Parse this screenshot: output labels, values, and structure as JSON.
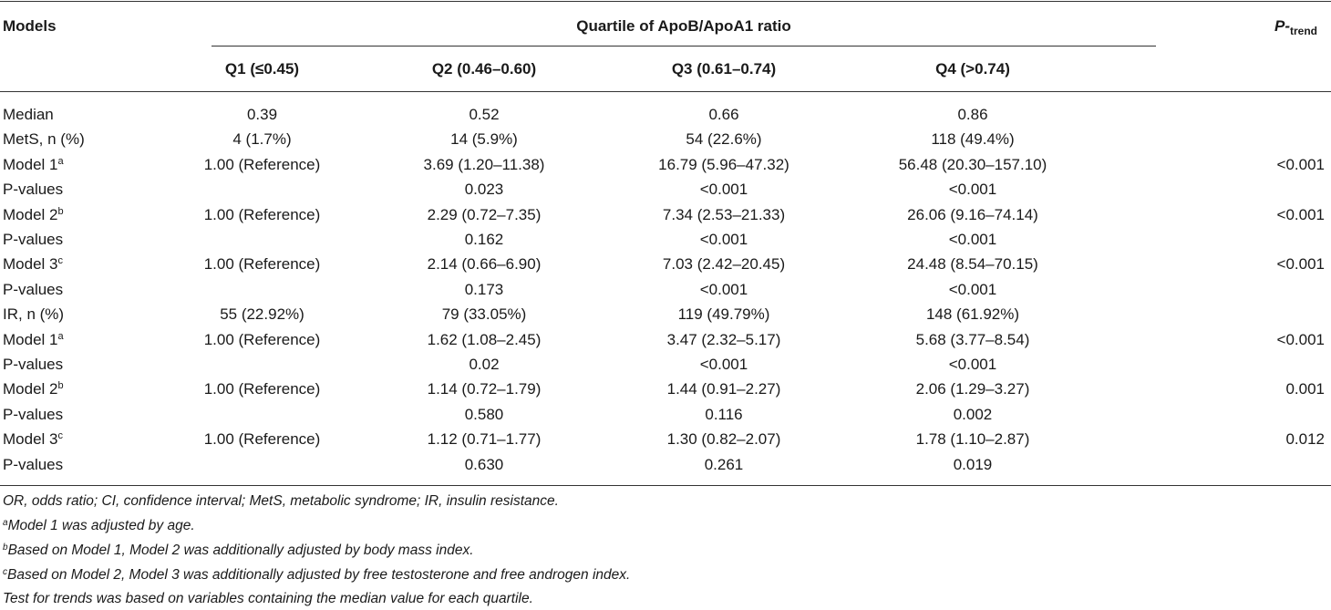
{
  "table": {
    "header": {
      "models": "Models",
      "group": "Quartile of ApoB/ApoA1 ratio",
      "ptrend_main": "P-",
      "ptrend_sub": "trend",
      "quartiles": [
        "Q1 (≤0.45)",
        "Q2 (0.46–0.60)",
        "Q3 (0.61–0.74)",
        "Q4 (>0.74)"
      ]
    },
    "rows": [
      {
        "label": "Median",
        "sup": "",
        "q1": "0.39",
        "q2": "0.52",
        "q3": "0.66",
        "q4": "0.86",
        "p": ""
      },
      {
        "label": "MetS, n (%)",
        "sup": "",
        "q1": "4 (1.7%)",
        "q2": "14 (5.9%)",
        "q3": "54 (22.6%)",
        "q4": "118 (49.4%)",
        "p": ""
      },
      {
        "label": "Model 1",
        "sup": "a",
        "q1": "1.00 (Reference)",
        "q2": "3.69 (1.20–11.38)",
        "q3": "16.79 (5.96–47.32)",
        "q4": "56.48 (20.30–157.10)",
        "p": "<0.001"
      },
      {
        "label": "P-values",
        "sup": "",
        "q1": "",
        "q2": "0.023",
        "q3": "<0.001",
        "q4": "<0.001",
        "p": ""
      },
      {
        "label": "Model 2",
        "sup": "b",
        "q1": "1.00 (Reference)",
        "q2": "2.29 (0.72–7.35)",
        "q3": "7.34 (2.53–21.33)",
        "q4": "26.06 (9.16–74.14)",
        "p": "<0.001"
      },
      {
        "label": "P-values",
        "sup": "",
        "q1": "",
        "q2": "0.162",
        "q3": "<0.001",
        "q4": "<0.001",
        "p": ""
      },
      {
        "label": "Model 3",
        "sup": "c",
        "q1": "1.00 (Reference)",
        "q2": "2.14 (0.66–6.90)",
        "q3": "7.03 (2.42–20.45)",
        "q4": "24.48 (8.54–70.15)",
        "p": "<0.001"
      },
      {
        "label": "P-values",
        "sup": "",
        "q1": "",
        "q2": "0.173",
        "q3": "<0.001",
        "q4": "<0.001",
        "p": ""
      },
      {
        "label": "IR, n (%)",
        "sup": "",
        "q1": "55 (22.92%)",
        "q2": "79 (33.05%)",
        "q3": "119 (49.79%)",
        "q4": "148 (61.92%)",
        "p": ""
      },
      {
        "label": "Model 1",
        "sup": "a",
        "q1": "1.00 (Reference)",
        "q2": "1.62 (1.08–2.45)",
        "q3": "3.47 (2.32–5.17)",
        "q4": "5.68 (3.77–8.54)",
        "p": "<0.001"
      },
      {
        "label": "P-values",
        "sup": "",
        "q1": "",
        "q2": "0.02",
        "q3": "<0.001",
        "q4": "<0.001",
        "p": ""
      },
      {
        "label": "Model 2",
        "sup": "b",
        "q1": "1.00 (Reference)",
        "q2": "1.14 (0.72–1.79)",
        "q3": "1.44 (0.91–2.27)",
        "q4": "2.06 (1.29–3.27)",
        "p": "0.001"
      },
      {
        "label": "P-values",
        "sup": "",
        "q1": "",
        "q2": "0.580",
        "q3": "0.116",
        "q4": "0.002",
        "p": ""
      },
      {
        "label": "Model 3",
        "sup": "c",
        "q1": "1.00 (Reference)",
        "q2": "1.12 (0.71–1.77)",
        "q3": "1.30 (0.82–2.07)",
        "q4": "1.78 (1.10–2.87)",
        "p": "0.012"
      },
      {
        "label": "P-values",
        "sup": "",
        "q1": "",
        "q2": "0.630",
        "q3": "0.261",
        "q4": "0.019",
        "p": ""
      }
    ]
  },
  "footnotes": [
    {
      "sup": "",
      "text": "OR, odds ratio; CI, confidence interval; MetS, metabolic syndrome; IR, insulin resistance."
    },
    {
      "sup": "a",
      "text": "Model 1 was adjusted by age."
    },
    {
      "sup": "b",
      "text": "Based on Model 1, Model 2 was additionally adjusted by body mass index."
    },
    {
      "sup": "c",
      "text": "Based on Model 2, Model 3 was additionally adjusted by free testosterone and free androgen index."
    },
    {
      "sup": "",
      "text": "Test for trends was based on variables containing the median value for each quartile."
    }
  ]
}
